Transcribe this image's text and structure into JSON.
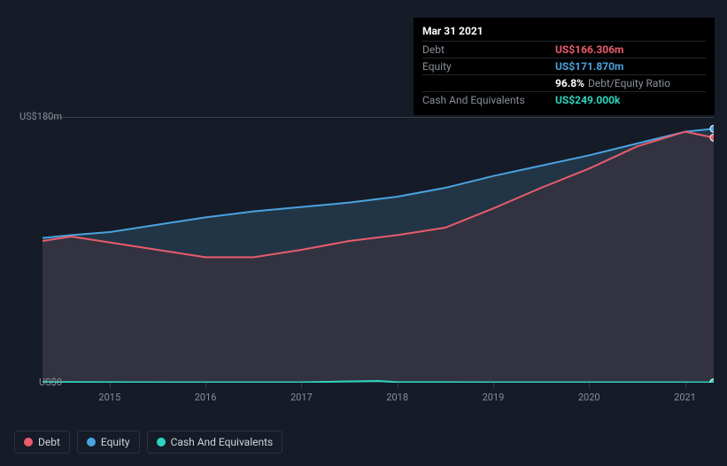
{
  "tooltip": {
    "date": "Mar 31 2021",
    "rows": [
      {
        "label": "Debt",
        "value": "US$166.306m",
        "color": "#e85c6c"
      },
      {
        "label": "Equity",
        "value": "US$171.870m",
        "color": "#4aa3e0"
      },
      {
        "label": "",
        "value": "96.8%",
        "suffix": "Debt/Equity Ratio",
        "color": "#ffffff"
      },
      {
        "label": "Cash And Equivalents",
        "value": "US$249.000k",
        "color": "#2dd4bf"
      }
    ]
  },
  "chart": {
    "type": "area",
    "background_color": "#151b27",
    "grid_color": "#3a3f48",
    "axis_label_color": "#8a8f98",
    "axis_label_fontsize": 11,
    "ylim": [
      0,
      180
    ],
    "y_ticks": [
      {
        "value": 0,
        "label": "US$0"
      },
      {
        "value": 180,
        "label": "US$180m"
      }
    ],
    "xlim": [
      2014.3,
      2021.3
    ],
    "x_ticks": [
      2015,
      2016,
      2017,
      2018,
      2019,
      2020,
      2021
    ],
    "series": [
      {
        "name": "Equity",
        "stroke": "#4aa3e0",
        "fill": "#2e4a61",
        "fill_opacity": 0.55,
        "stroke_width": 2,
        "data": [
          [
            2014.3,
            98
          ],
          [
            2014.6,
            100
          ],
          [
            2015.0,
            102
          ],
          [
            2015.5,
            107
          ],
          [
            2016.0,
            112
          ],
          [
            2016.5,
            116
          ],
          [
            2017.0,
            119
          ],
          [
            2017.5,
            122
          ],
          [
            2018.0,
            126
          ],
          [
            2018.5,
            132
          ],
          [
            2019.0,
            140
          ],
          [
            2019.5,
            147
          ],
          [
            2020.0,
            154
          ],
          [
            2020.5,
            162
          ],
          [
            2021.0,
            170
          ],
          [
            2021.3,
            172
          ]
        ]
      },
      {
        "name": "Debt",
        "stroke": "#e85c6c",
        "fill": "#4a2e3a",
        "fill_opacity": 0.45,
        "stroke_width": 2,
        "data": [
          [
            2014.3,
            96
          ],
          [
            2014.6,
            99
          ],
          [
            2015.0,
            95
          ],
          [
            2015.5,
            90
          ],
          [
            2016.0,
            85
          ],
          [
            2016.5,
            85
          ],
          [
            2017.0,
            90
          ],
          [
            2017.5,
            96
          ],
          [
            2018.0,
            100
          ],
          [
            2018.5,
            105
          ],
          [
            2019.0,
            118
          ],
          [
            2019.5,
            132
          ],
          [
            2020.0,
            145
          ],
          [
            2020.5,
            160
          ],
          [
            2021.0,
            170
          ],
          [
            2021.3,
            166
          ]
        ]
      },
      {
        "name": "Cash And Equivalents",
        "stroke": "#2dd4bf",
        "fill": "#1a3d3a",
        "fill_opacity": 0.6,
        "stroke_width": 2,
        "data": [
          [
            2014.3,
            0.5
          ],
          [
            2015.0,
            0.4
          ],
          [
            2016.0,
            0.3
          ],
          [
            2017.0,
            0.3
          ],
          [
            2017.8,
            1.2
          ],
          [
            2018.0,
            0.4
          ],
          [
            2019.0,
            0.3
          ],
          [
            2020.0,
            0.3
          ],
          [
            2021.0,
            0.3
          ],
          [
            2021.3,
            0.25
          ]
        ]
      }
    ],
    "end_markers": true,
    "marker_radius": 4
  },
  "legend": {
    "items": [
      {
        "label": "Debt",
        "color": "#e85c6c"
      },
      {
        "label": "Equity",
        "color": "#4aa3e0"
      },
      {
        "label": "Cash And Equivalents",
        "color": "#2dd4bf"
      }
    ],
    "border_color": "#2a303c",
    "text_color": "#cfd3da",
    "fontsize": 12
  }
}
